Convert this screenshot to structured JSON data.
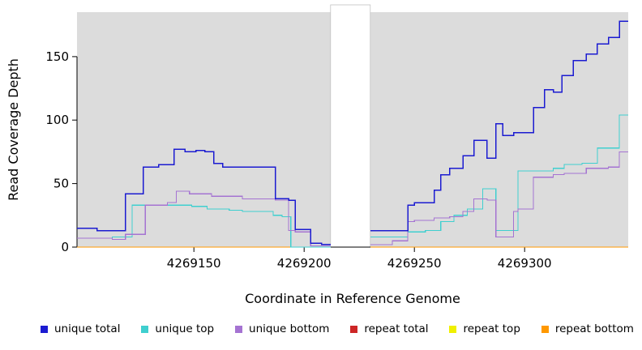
{
  "chart_data": {
    "type": "line",
    "title": "",
    "xlabel": "Coordinate in Reference Genome",
    "ylabel": "Read Coverage Depth",
    "xlim": [
      4269097,
      4269347
    ],
    "ylim": [
      0,
      185
    ],
    "x_ticks": [
      4269150,
      4269200,
      4269250,
      4269300
    ],
    "y_ticks": [
      0,
      50,
      100,
      150
    ],
    "grid": false,
    "panel_bg": "#dcdcdc",
    "gap_region": [
      4269212,
      4269230
    ],
    "legend_position": "bottom",
    "step_interpolation": "step-after",
    "series": [
      {
        "name": "unique total",
        "color": "#1b1bd1",
        "segments": [
          [
            [
              4269097,
              15
            ],
            [
              4269106,
              13
            ],
            [
              4269119,
              42
            ],
            [
              4269127,
              63
            ],
            [
              4269134,
              65
            ],
            [
              4269141,
              77
            ],
            [
              4269146,
              75
            ],
            [
              4269151,
              76
            ],
            [
              4269155,
              75
            ],
            [
              4269159,
              66
            ],
            [
              4269163,
              63
            ],
            [
              4269187,
              38
            ],
            [
              4269193,
              37
            ],
            [
              4269196,
              14
            ],
            [
              4269203,
              3
            ],
            [
              4269208,
              2
            ],
            [
              4269212,
              2
            ]
          ],
          [
            [
              4269230,
              13
            ],
            [
              4269247,
              33
            ],
            [
              4269250,
              35
            ],
            [
              4269259,
              45
            ],
            [
              4269262,
              57
            ],
            [
              4269266,
              62
            ],
            [
              4269272,
              72
            ],
            [
              4269277,
              84
            ],
            [
              4269283,
              70
            ],
            [
              4269287,
              97
            ],
            [
              4269290,
              88
            ],
            [
              4269295,
              90
            ],
            [
              4269304,
              110
            ],
            [
              4269309,
              124
            ],
            [
              4269313,
              122
            ],
            [
              4269317,
              135
            ],
            [
              4269322,
              147
            ],
            [
              4269328,
              152
            ],
            [
              4269333,
              160
            ],
            [
              4269338,
              165
            ],
            [
              4269343,
              178
            ],
            [
              4269347,
              178
            ]
          ]
        ]
      },
      {
        "name": "unique top",
        "color": "#3fcfcf",
        "segments": [
          [
            [
              4269097,
              7
            ],
            [
              4269113,
              8
            ],
            [
              4269122,
              33
            ],
            [
              4269149,
              32
            ],
            [
              4269156,
              30
            ],
            [
              4269166,
              29
            ],
            [
              4269172,
              28
            ],
            [
              4269186,
              25
            ],
            [
              4269190,
              24
            ],
            [
              4269194,
              0
            ],
            [
              4269212,
              0
            ]
          ],
          [
            [
              4269230,
              8
            ],
            [
              4269247,
              12
            ],
            [
              4269255,
              13
            ],
            [
              4269262,
              20
            ],
            [
              4269268,
              25
            ],
            [
              4269274,
              30
            ],
            [
              4269281,
              46
            ],
            [
              4269287,
              13
            ],
            [
              4269297,
              60
            ],
            [
              4269313,
              62
            ],
            [
              4269318,
              65
            ],
            [
              4269326,
              66
            ],
            [
              4269333,
              78
            ],
            [
              4269343,
              104
            ],
            [
              4269347,
              104
            ]
          ]
        ]
      },
      {
        "name": "unique bottom",
        "color": "#a573d2",
        "segments": [
          [
            [
              4269097,
              7
            ],
            [
              4269113,
              6
            ],
            [
              4269119,
              10
            ],
            [
              4269128,
              33
            ],
            [
              4269138,
              35
            ],
            [
              4269142,
              44
            ],
            [
              4269148,
              42
            ],
            [
              4269158,
              40
            ],
            [
              4269172,
              38
            ],
            [
              4269187,
              37
            ],
            [
              4269193,
              13
            ],
            [
              4269196,
              12
            ],
            [
              4269203,
              1
            ],
            [
              4269212,
              1
            ]
          ],
          [
            [
              4269230,
              2
            ],
            [
              4269240,
              5
            ],
            [
              4269247,
              20
            ],
            [
              4269250,
              21
            ],
            [
              4269259,
              23
            ],
            [
              4269266,
              24
            ],
            [
              4269272,
              28
            ],
            [
              4269277,
              38
            ],
            [
              4269283,
              37
            ],
            [
              4269287,
              8
            ],
            [
              4269295,
              28
            ],
            [
              4269297,
              30
            ],
            [
              4269304,
              55
            ],
            [
              4269313,
              57
            ],
            [
              4269318,
              58
            ],
            [
              4269328,
              62
            ],
            [
              4269338,
              63
            ],
            [
              4269343,
              75
            ],
            [
              4269347,
              75
            ]
          ]
        ]
      },
      {
        "name": "repeat total",
        "color": "#cd2626",
        "segments": [
          [
            [
              4269097,
              0
            ],
            [
              4269212,
              0
            ]
          ],
          [
            [
              4269230,
              0
            ],
            [
              4269347,
              0
            ]
          ]
        ]
      },
      {
        "name": "repeat top",
        "color": "#f0f000",
        "segments": [
          [
            [
              4269097,
              0
            ],
            [
              4269212,
              0
            ]
          ],
          [
            [
              4269230,
              0
            ],
            [
              4269347,
              0
            ]
          ]
        ]
      },
      {
        "name": "repeat bottom",
        "color": "#ff9800",
        "segments": [
          [
            [
              4269097,
              0
            ],
            [
              4269212,
              0
            ]
          ],
          [
            [
              4269230,
              0
            ],
            [
              4269347,
              0
            ]
          ]
        ]
      }
    ]
  }
}
